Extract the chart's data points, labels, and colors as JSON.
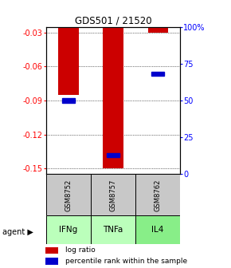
{
  "title": "GDS501 / 21520",
  "samples": [
    "GSM8752",
    "GSM8757",
    "GSM8762"
  ],
  "agents": [
    "IFNg",
    "TNFa",
    "IL4"
  ],
  "log_ratios": [
    -0.085,
    -0.15,
    -0.03
  ],
  "percentile_ranks": [
    50,
    13,
    68
  ],
  "ylim": [
    -0.155,
    -0.025
  ],
  "yticks_left": [
    -0.03,
    -0.06,
    -0.09,
    -0.12,
    -0.15
  ],
  "yticks_right_vals": [
    100,
    75,
    50,
    25,
    0
  ],
  "yticks_right_pct": [
    100,
    75,
    50,
    25,
    0
  ],
  "bar_color": "#cc0000",
  "percentile_color": "#0000cc",
  "sample_bg": "#c8c8c8",
  "agent_colors": [
    "#bbffbb",
    "#bbffbb",
    "#88ee88"
  ],
  "bar_width": 0.45
}
